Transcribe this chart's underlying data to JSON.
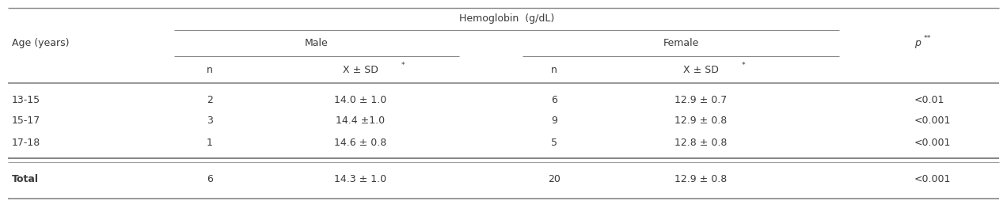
{
  "title_header": "Hemoglobin  (g/dL)",
  "col_age": "Age (years)",
  "col_header_male": "Male",
  "col_header_female": "Female",
  "col_p": "p",
  "col_p_sup": "**",
  "col_n": "n",
  "col_xsd": "X ± SD",
  "col_xsd_sup": "*",
  "rows": [
    {
      "age": "13-15",
      "male_n": "2",
      "male_xsd": "14.0 ± 1.0",
      "female_n": "6",
      "female_xsd": "12.9 ± 0.7",
      "p": "<0.01"
    },
    {
      "age": "15-17",
      "male_n": "3",
      "male_xsd": "14.4 ±1.0",
      "female_n": "9",
      "female_xsd": "12.9 ± 0.8",
      "p": "<0.001"
    },
    {
      "age": "17-18",
      "male_n": "1",
      "male_xsd": "14.6 ± 0.8",
      "female_n": "5",
      "female_xsd": "12.8 ± 0.8",
      "p": "<0.001"
    }
  ],
  "total": {
    "age": "Total",
    "male_n": "6",
    "male_xsd": "14.3 ± 1.0",
    "female_n": "20",
    "female_xsd": "12.9 ± 0.8",
    "p": "<0.001"
  },
  "text_color": "#3a3a3a",
  "line_color": "#888888",
  "font_size": 9.0,
  "fig_width": 12.72,
  "fig_height": 2.73,
  "dpi": 100
}
